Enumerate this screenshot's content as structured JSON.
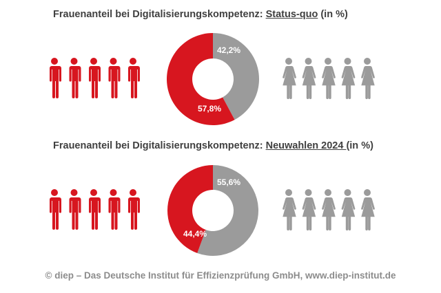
{
  "colors": {
    "men": "#d7161f",
    "women": "#9b9b9b",
    "title": "#404040",
    "footer": "#8c8c8c"
  },
  "chart_data": [
    {
      "type": "pie",
      "variant": "donut",
      "title_prefix": "Frauenanteil bei Digitalisierungskompetenz: ",
      "title_emphasis": "Status-quo",
      "title_suffix": " (in %)",
      "slices": [
        {
          "name": "Frauen",
          "value": 42.2,
          "label": "42,2%",
          "color": "#9b9b9b"
        },
        {
          "name": "Männer",
          "value": 57.8,
          "label": "57,8%",
          "color": "#d7161f"
        }
      ],
      "icons_left": {
        "type": "male",
        "count": 5
      },
      "icons_right": {
        "type": "female",
        "count": 5
      }
    },
    {
      "type": "pie",
      "variant": "donut",
      "title_prefix": "Frauenanteil bei Digitalisierungskompetenz: ",
      "title_emphasis": "Neuwahlen 2024 ",
      "title_suffix": "(in %)",
      "slices": [
        {
          "name": "Frauen",
          "value": 55.6,
          "label": "55,6%",
          "color": "#9b9b9b"
        },
        {
          "name": "Männer",
          "value": 44.4,
          "label": "44,4%",
          "color": "#d7161f"
        }
      ],
      "icons_left": {
        "type": "male",
        "count": 5
      },
      "icons_right": {
        "type": "female",
        "count": 5
      }
    }
  ],
  "footer": {
    "copyright_icon": "copyright-icon",
    "text": "©  diep – Das Deutsche Institut für Effizienzprüfung GmbH, www.diep-institut.de"
  }
}
